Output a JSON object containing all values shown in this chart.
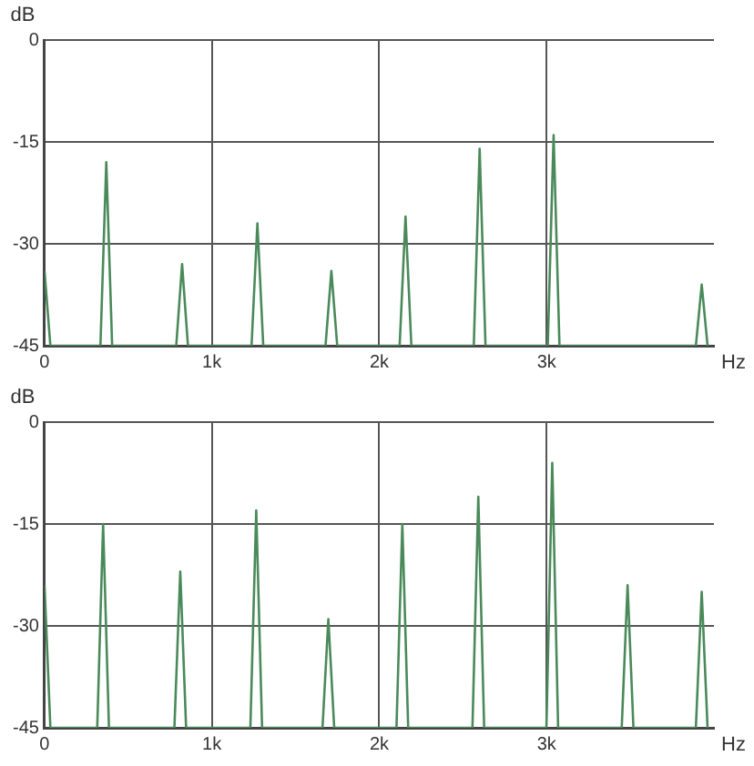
{
  "chart_data": [
    {
      "type": "line",
      "xlabel": "Hz",
      "ylabel": "dB",
      "xlim": [
        0,
        4000
      ],
      "ylim": [
        -45,
        0
      ],
      "xticks": [
        0,
        {
          "value": 1000,
          "label": "1k"
        },
        {
          "value": 2000,
          "label": "2k"
        },
        {
          "value": 3000,
          "label": "3k"
        }
      ],
      "yticks": [
        0,
        -15,
        -30,
        -45
      ],
      "grid": true,
      "marker": "none",
      "line_style": "solid",
      "series": [
        {
          "color": "#4a8a5a",
          "x": [
            0,
            35,
            334,
            369,
            404,
            787,
            822,
            857,
            1237,
            1272,
            1307,
            1679,
            1714,
            1749,
            2122,
            2157,
            2192,
            2565,
            2600,
            2635,
            3007,
            3042,
            3077,
            3892,
            3927,
            3962
          ],
          "values": [
            -34,
            -45,
            -45,
            -18,
            -45,
            -45,
            -33,
            -45,
            -45,
            -27,
            -45,
            -45,
            -34,
            -45,
            -45,
            -26,
            -45,
            -45,
            -16,
            -45,
            -45,
            -14,
            -45,
            -45,
            -36,
            -45
          ]
        }
      ]
    },
    {
      "type": "line",
      "xlabel": "Hz",
      "ylabel": "dB",
      "xlim": [
        0,
        4000
      ],
      "ylim": [
        -45,
        0
      ],
      "xticks": [
        0,
        {
          "value": 1000,
          "label": "1k"
        },
        {
          "value": 2000,
          "label": "2k"
        },
        {
          "value": 3000,
          "label": "3k"
        }
      ],
      "yticks": [
        0,
        -15,
        -30,
        -45
      ],
      "grid": true,
      "marker": "none",
      "line_style": "solid",
      "series": [
        {
          "color": "#4a8a5a",
          "x": [
            0,
            35,
            315,
            350,
            385,
            776,
            811,
            846,
            1230,
            1265,
            1300,
            1661,
            1696,
            1731,
            2103,
            2138,
            2173,
            2557,
            2592,
            2627,
            2999,
            3034,
            3069,
            3449,
            3484,
            3519,
            3892,
            3927,
            3962
          ],
          "values": [
            -24,
            -45,
            -45,
            -15,
            -45,
            -45,
            -22,
            -45,
            -45,
            -13,
            -45,
            -45,
            -29,
            -45,
            -45,
            -15,
            -45,
            -45,
            -11,
            -45,
            -45,
            -6,
            -45,
            -45,
            -24,
            -45,
            -45,
            -25,
            -45
          ]
        }
      ]
    }
  ]
}
